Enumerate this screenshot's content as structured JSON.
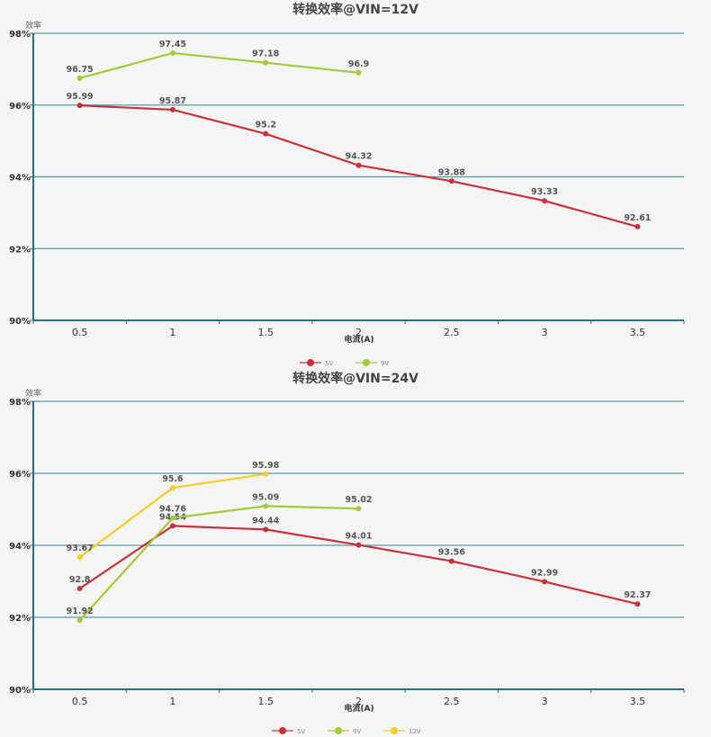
{
  "chart_data": [
    {
      "type": "line",
      "title": "转换效率@VIN=12V",
      "ylabel": "效率",
      "xlabel": "电流(A)",
      "categories": [
        "0.5",
        "1",
        "1.5",
        "2",
        "2.5",
        "3",
        "3.5"
      ],
      "yticks": [
        "90%",
        "92%",
        "94%",
        "96%",
        "98%"
      ],
      "ylim": [
        90,
        98
      ],
      "grid": true,
      "legend_position": "bottom-center",
      "series": [
        {
          "name": "5V",
          "color": "#c8323c",
          "values": [
            95.99,
            95.87,
            95.2,
            94.32,
            93.88,
            93.33,
            92.61
          ]
        },
        {
          "name": "9V",
          "color": "#a8c83c",
          "values": [
            96.75,
            97.45,
            97.18,
            96.9,
            null,
            null,
            null
          ]
        }
      ]
    },
    {
      "type": "line",
      "title": "转换效率@VIN=24V",
      "ylabel": "效率",
      "xlabel": "电流(A)",
      "categories": [
        "0.5",
        "1",
        "1.5",
        "2",
        "2.5",
        "3",
        "3.5"
      ],
      "yticks": [
        "90%",
        "92%",
        "94%",
        "96%",
        "98%"
      ],
      "ylim": [
        90,
        98
      ],
      "grid": true,
      "legend_position": "bottom-center",
      "series": [
        {
          "name": "5V",
          "color": "#c8323c",
          "values": [
            92.8,
            94.54,
            94.44,
            94.01,
            93.56,
            92.99,
            92.37
          ]
        },
        {
          "name": "9V",
          "color": "#a8c83c",
          "values": [
            91.92,
            94.76,
            95.09,
            95.02,
            null,
            null,
            null
          ]
        },
        {
          "name": "12V",
          "color": "#f5cc2a",
          "values": [
            93.67,
            95.6,
            95.98,
            null,
            null,
            null,
            null
          ]
        }
      ]
    }
  ]
}
